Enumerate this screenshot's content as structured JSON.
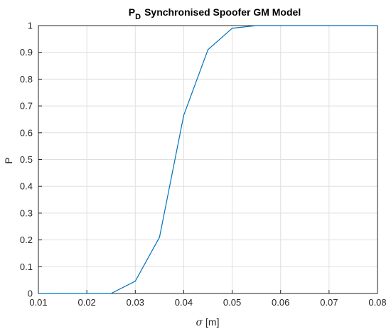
{
  "chart_data": {
    "type": "line",
    "title_main": "P",
    "title_sub": "D",
    "title_rest": "Synchronised Spoofer GM Model",
    "xlabel_symbol": "σ",
    "xlabel_unit": "[m]",
    "ylabel": "P",
    "xlim": [
      0.01,
      0.08
    ],
    "ylim": [
      0,
      1
    ],
    "xticks": [
      "0.01",
      "0.02",
      "0.03",
      "0.04",
      "0.05",
      "0.06",
      "0.07",
      "0.08"
    ],
    "yticks": [
      "0",
      "0.1",
      "0.2",
      "0.3",
      "0.4",
      "0.5",
      "0.6",
      "0.7",
      "0.8",
      "0.9",
      "1"
    ],
    "grid": true,
    "series": [
      {
        "color": "#0072bd",
        "x": [
          0.01,
          0.015,
          0.02,
          0.025,
          0.03,
          0.035,
          0.04,
          0.045,
          0.05,
          0.055,
          0.06,
          0.065,
          0.07,
          0.075,
          0.08
        ],
        "y": [
          0,
          0,
          0,
          0,
          0.046,
          0.21,
          0.665,
          0.91,
          0.99,
          1,
          1,
          1,
          1,
          1,
          1
        ]
      }
    ]
  }
}
